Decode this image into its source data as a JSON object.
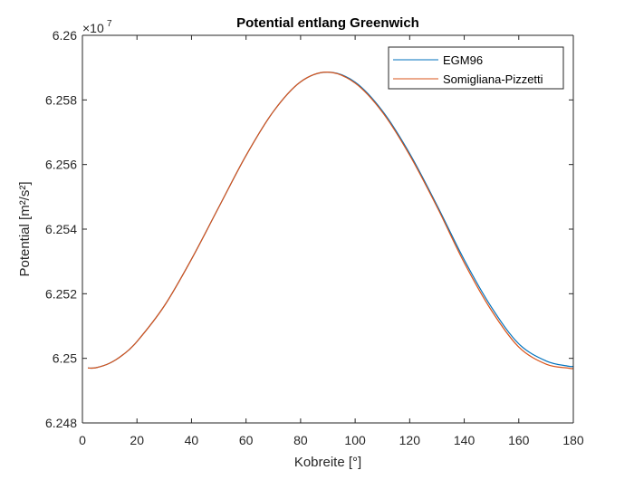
{
  "chart_data": {
    "type": "line",
    "title": "Potential entlang Greenwich",
    "xlabel": "Kobreite [°]",
    "ylabel": "Potential [m²/s²]",
    "exponent_base": "×10",
    "exponent_power": "7",
    "scale_factor": 10000000,
    "xlim": [
      0,
      180
    ],
    "ylim": [
      6.248,
      6.26
    ],
    "xticks": [
      0,
      20,
      40,
      60,
      80,
      100,
      120,
      140,
      160,
      180
    ],
    "xtick_labels": [
      "0",
      "20",
      "40",
      "60",
      "80",
      "100",
      "120",
      "140",
      "160",
      "180"
    ],
    "yticks": [
      6.248,
      6.25,
      6.252,
      6.254,
      6.256,
      6.258,
      6.26
    ],
    "ytick_labels": [
      "6.248",
      "6.25",
      "6.252",
      "6.254",
      "6.256",
      "6.258",
      "6.26"
    ],
    "grid": false,
    "legend_position": "top-right",
    "x": [
      2,
      5,
      10,
      15,
      20,
      30,
      40,
      50,
      60,
      70,
      80,
      90,
      100,
      110,
      120,
      130,
      140,
      150,
      160,
      170,
      178,
      180
    ],
    "series": [
      {
        "name": "EGM96",
        "color": "#0072BD",
        "values": [
          6.2497,
          6.24971,
          6.24985,
          6.25012,
          6.25052,
          6.25162,
          6.25307,
          6.25468,
          6.25628,
          6.25764,
          6.25856,
          6.25886,
          6.25855,
          6.25766,
          6.25634,
          6.25474,
          6.25305,
          6.25158,
          6.25045,
          6.24992,
          6.24976,
          6.24975
        ]
      },
      {
        "name": "Somigliana-Pizzetti",
        "color": "#D95319",
        "values": [
          6.2497,
          6.24971,
          6.24985,
          6.25012,
          6.25052,
          6.25162,
          6.25307,
          6.25468,
          6.25628,
          6.25764,
          6.25856,
          6.25886,
          6.25852,
          6.25762,
          6.25629,
          6.25469,
          6.25296,
          6.25148,
          6.25035,
          6.24982,
          6.2497,
          6.24968
        ]
      }
    ]
  }
}
